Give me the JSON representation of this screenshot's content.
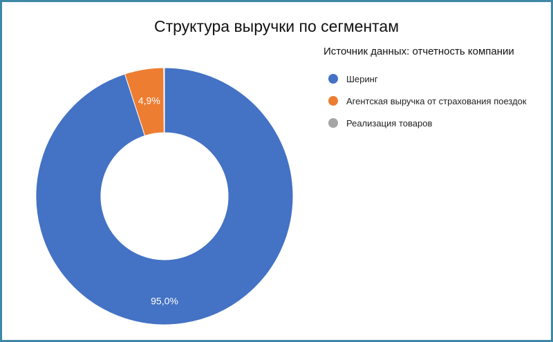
{
  "chart_data": {
    "type": "pie",
    "style": "donut",
    "title": "Структура выручки по сегментам",
    "subtitle": "Источник данных: отчетность компании",
    "legend_position": "right",
    "series": [
      {
        "name": "Шеринг",
        "value": 95.0,
        "label": "95,0%",
        "color": "#4472c4"
      },
      {
        "name": "Агентская выручка от страхования поездок",
        "value": 4.9,
        "label": "4,9%",
        "color": "#ed7d31"
      },
      {
        "name": "Реализация товаров",
        "value": 0.1,
        "label": "",
        "color": "#a5a5a5"
      }
    ]
  }
}
